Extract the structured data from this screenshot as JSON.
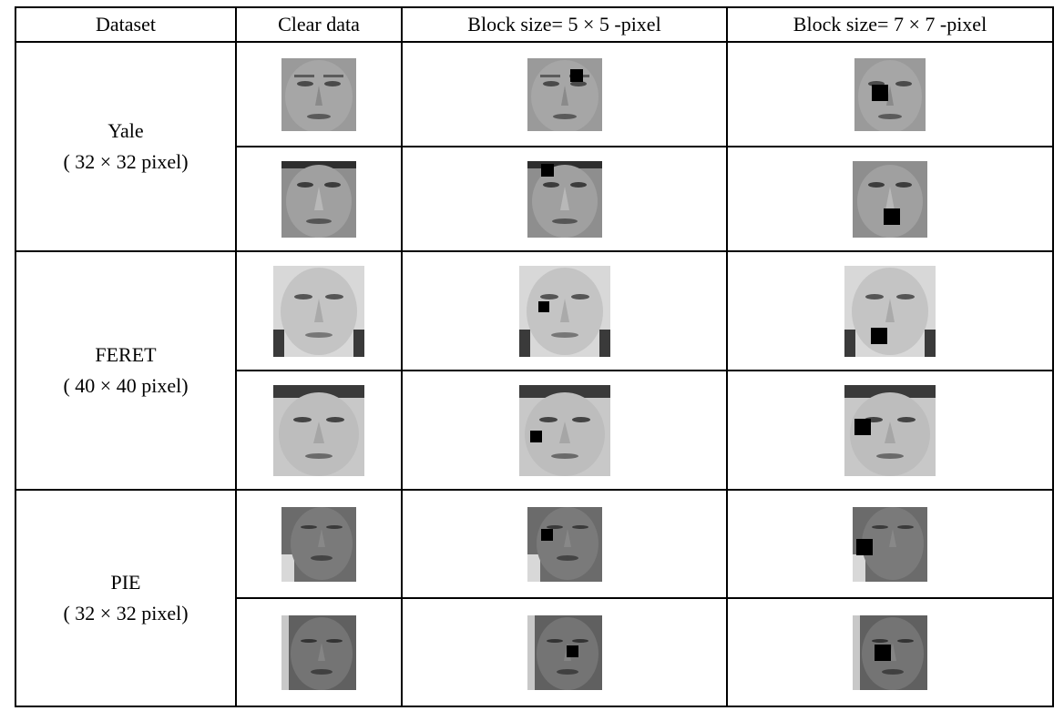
{
  "headers": [
    "Dataset",
    "Clear data",
    "Block size= 5 × 5 -pixel",
    "Block size= 7 × 7 -pixel"
  ],
  "datasets": [
    {
      "name": "Yale",
      "size": "( 32 × 32 pixel)"
    },
    {
      "name": "FERET",
      "size": "( 40 × 40 pixel)"
    },
    {
      "name": "PIE",
      "size": "( 32 × 32 pixel)"
    }
  ],
  "colors": {
    "yale_skin": "#9a9a9a",
    "feret_skin": "#c8c8c8",
    "pie_skin": "#6b6b6b",
    "occlusion": "#000000"
  }
}
